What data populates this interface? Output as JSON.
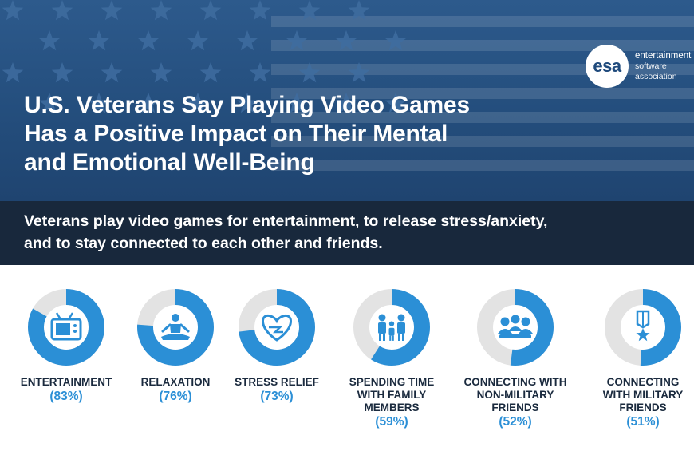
{
  "brand": {
    "logo_mark": "esa",
    "logo_lines": [
      "entertainment",
      "software",
      "association"
    ]
  },
  "header": {
    "title_lines": [
      "U.S. Veterans Say Playing Video Games",
      "Has a Positive Impact on Their Mental",
      "and Emotional Well-Being"
    ],
    "subtitle_lines": [
      "Veterans play video games for entertainment, to release stress/anxiety,",
      "and to stay connected to each other and friends."
    ]
  },
  "colors": {
    "accent": "#2b8fd6",
    "track": "#e3e3e3",
    "hero": "#244e7d",
    "subbar": "#18283c",
    "label": "#1a2a3e"
  },
  "chart_data": {
    "type": "donut",
    "unit": "%",
    "items": [
      {
        "label_lines": [
          "ENTERTAINMENT"
        ],
        "value": 83,
        "value_label": "(83%)",
        "icon": "tv-icon"
      },
      {
        "label_lines": [
          "RELAXATION"
        ],
        "value": 76,
        "value_label": "(76%)",
        "icon": "meditation-icon"
      },
      {
        "label_lines": [
          "STRESS RELIEF"
        ],
        "value": 73,
        "value_label": "(73%)",
        "icon": "heart-icon"
      },
      {
        "label_lines": [
          "SPENDING TIME",
          "WITH FAMILY",
          "MEMBERS"
        ],
        "value": 59,
        "value_label": "(59%)",
        "icon": "family-icon"
      },
      {
        "label_lines": [
          "CONNECTING WITH",
          "NON-MILITARY",
          "FRIENDS"
        ],
        "value": 52,
        "value_label": "(52%)",
        "icon": "group-icon"
      },
      {
        "label_lines": [
          "CONNECTING",
          "WITH MILITARY",
          "FRIENDS"
        ],
        "value": 51,
        "value_label": "(51%)",
        "icon": "medal-icon"
      }
    ]
  }
}
